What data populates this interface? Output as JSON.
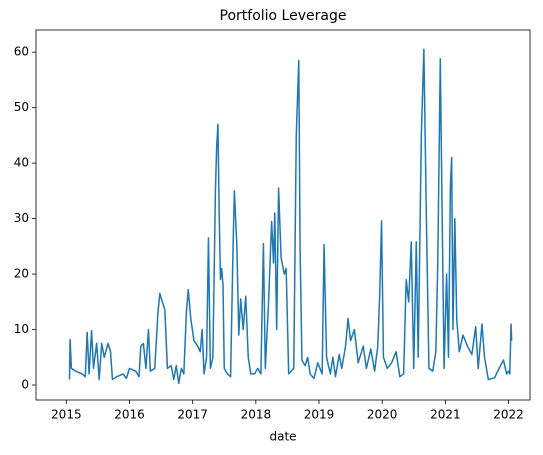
{
  "chart_data": {
    "type": "line",
    "title": "Portfolio Leverage",
    "xlabel": "date",
    "x": [
      2015.05,
      2015.06,
      2015.08,
      2015.15,
      2015.25,
      2015.3,
      2015.33,
      2015.36,
      2015.4,
      2015.43,
      2015.48,
      2015.52,
      2015.56,
      2015.6,
      2015.66,
      2015.7,
      2015.73,
      2015.8,
      2015.9,
      2015.95,
      2016.0,
      2016.1,
      2016.15,
      2016.18,
      2016.22,
      2016.26,
      2016.3,
      2016.33,
      2016.4,
      2016.45,
      2016.48,
      2016.52,
      2016.56,
      2016.6,
      2016.66,
      2016.7,
      2016.74,
      2016.78,
      2016.82,
      2016.86,
      2016.9,
      2016.93,
      2016.97,
      2017.02,
      2017.08,
      2017.12,
      2017.15,
      2017.18,
      2017.22,
      2017.25,
      2017.28,
      2017.32,
      2017.36,
      2017.38,
      2017.4,
      2017.42,
      2017.44,
      2017.46,
      2017.48,
      2017.5,
      2017.55,
      2017.6,
      2017.64,
      2017.66,
      2017.7,
      2017.73,
      2017.76,
      2017.8,
      2017.84,
      2017.88,
      2017.92,
      2017.98,
      2018.03,
      2018.08,
      2018.12,
      2018.15,
      2018.2,
      2018.25,
      2018.28,
      2018.3,
      2018.33,
      2018.36,
      2018.4,
      2018.45,
      2018.48,
      2018.52,
      2018.6,
      2018.64,
      2018.68,
      2018.7,
      2018.73,
      2018.78,
      2018.82,
      2018.86,
      2018.92,
      2018.98,
      2019.05,
      2019.08,
      2019.12,
      2019.18,
      2019.22,
      2019.26,
      2019.32,
      2019.36,
      2019.42,
      2019.46,
      2019.5,
      2019.56,
      2019.62,
      2019.7,
      2019.75,
      2019.82,
      2019.88,
      2019.93,
      2019.96,
      2019.99,
      2020.02,
      2020.08,
      2020.15,
      2020.22,
      2020.28,
      2020.34,
      2020.38,
      2020.42,
      2020.46,
      2020.5,
      2020.54,
      2020.57,
      2020.62,
      2020.66,
      2020.7,
      2020.74,
      2020.8,
      2020.85,
      2020.88,
      2020.92,
      2020.95,
      2020.98,
      2021.02,
      2021.05,
      2021.08,
      2021.1,
      2021.12,
      2021.15,
      2021.18,
      2021.22,
      2021.28,
      2021.35,
      2021.42,
      2021.48,
      2021.52,
      2021.58,
      2021.62,
      2021.68,
      2021.78,
      2021.85,
      2021.92,
      2021.97,
      2022.0,
      2022.02,
      2022.04,
      2022.05
    ],
    "series": [
      {
        "color": "#1f77b4",
        "values": [
          1,
          8.2,
          3,
          2.5,
          2,
          1.5,
          9.5,
          2,
          9.8,
          3,
          7.5,
          1,
          7.5,
          5,
          7.5,
          6,
          1,
          1.5,
          2,
          1.2,
          3,
          2.5,
          1.5,
          7,
          7.5,
          3,
          10,
          2.5,
          3,
          13,
          16.5,
          15,
          13.5,
          3,
          3.5,
          1,
          3.5,
          0.3,
          3,
          2,
          13,
          17.2,
          12,
          8,
          7,
          6,
          10,
          2,
          5,
          26.5,
          3,
          5,
          35,
          43,
          47,
          31,
          19,
          21,
          18,
          3,
          2,
          1.5,
          25,
          35,
          25,
          9,
          15.5,
          10,
          16,
          5,
          2,
          2,
          3,
          2,
          25.5,
          3,
          14.5,
          29.5,
          22,
          31,
          10,
          35.5,
          23,
          20,
          21,
          2,
          3,
          45,
          58.5,
          25,
          4.5,
          3.5,
          5,
          2,
          1.2,
          4,
          2,
          25.3,
          5,
          2,
          5,
          1.5,
          5.5,
          3,
          7,
          12,
          8,
          10,
          4,
          7,
          3,
          6.5,
          2.5,
          7,
          16,
          29.6,
          5,
          3,
          4,
          6,
          1.5,
          2,
          19,
          15,
          25.8,
          3,
          25.8,
          5,
          45,
          60.5,
          30,
          3,
          2.5,
          6,
          22,
          58.8,
          30,
          3,
          20,
          5,
          36,
          41,
          10,
          30,
          12,
          6,
          9,
          7,
          5.5,
          10.5,
          3,
          11,
          5,
          1,
          1.3,
          3,
          4.5,
          2,
          2.5,
          2,
          11,
          8
        ]
      }
    ],
    "xlim": [
      2014.52,
      2022.34
    ],
    "xticks": [
      2015,
      2016,
      2017,
      2018,
      2019,
      2020,
      2021,
      2022
    ],
    "ylim": [
      -2.7,
      64
    ],
    "yticks": [
      0,
      10,
      20,
      30,
      40,
      50,
      60
    ],
    "grid": false
  }
}
